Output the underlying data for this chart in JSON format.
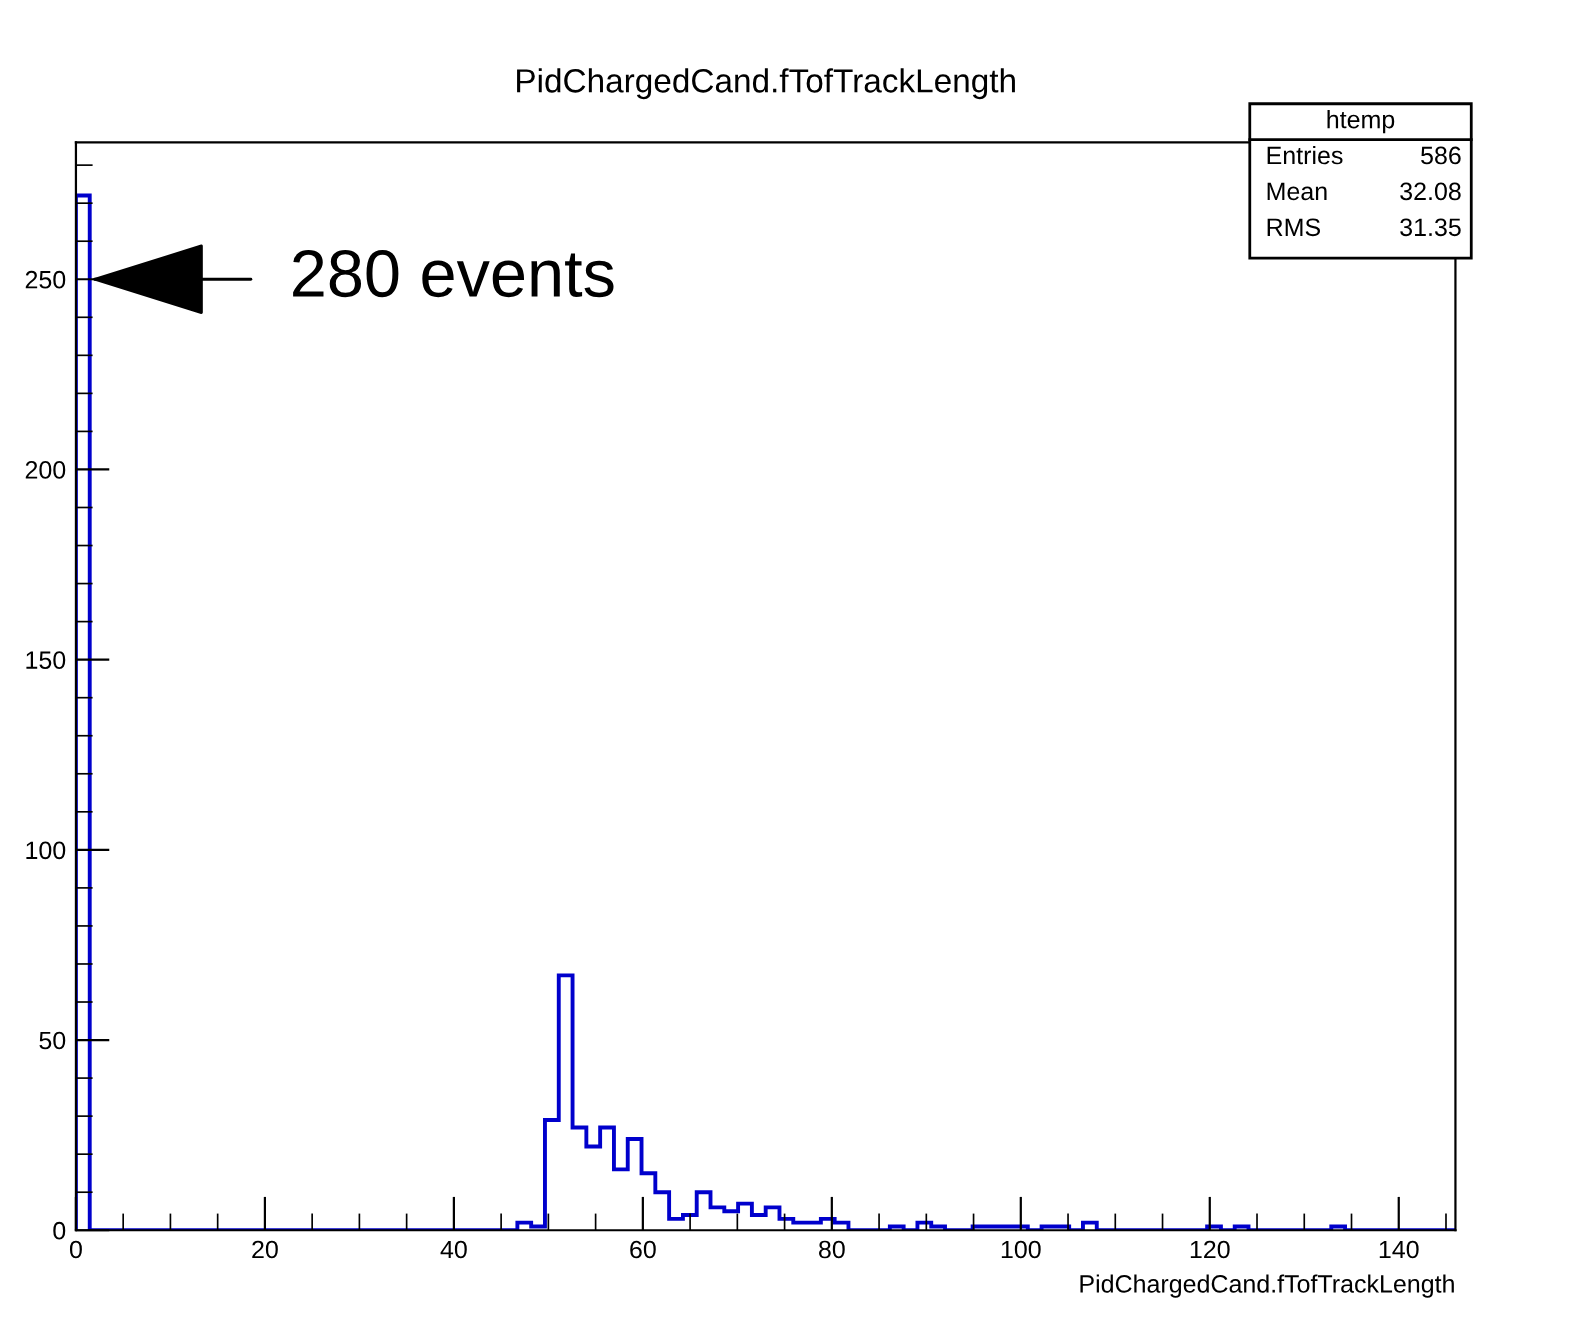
{
  "chart_data": {
    "type": "histogram",
    "title": "PidChargedCand.fTofTrackLength",
    "xlabel": "PidChargedCand.fTofTrackLength",
    "bins": [
      0,
      1.46,
      2.92,
      4.38,
      5.84,
      7.3,
      8.76,
      10.22,
      11.68,
      13.14,
      14.6,
      16.06,
      17.52,
      18.98,
      20.44,
      21.9,
      23.36,
      24.82,
      26.28,
      27.74,
      29.2,
      30.66,
      32.12,
      33.58,
      35.04,
      36.5,
      37.96,
      39.42,
      40.88,
      42.34,
      43.8,
      45.26,
      46.72,
      48.18,
      49.64,
      51.1,
      52.56,
      54.02,
      55.48,
      56.94,
      58.4,
      59.86,
      61.32,
      62.78,
      64.24,
      65.7,
      67.16,
      68.62,
      70.08,
      71.54,
      73,
      74.46,
      75.92,
      77.38,
      78.84,
      80.3,
      81.76,
      83.22,
      84.68,
      86.14,
      87.6,
      89.06,
      90.52,
      91.98,
      93.44,
      94.9,
      96.36,
      97.82,
      99.28,
      100.74,
      102.2,
      103.66,
      105.12,
      106.58,
      108.04,
      109.5,
      110.96,
      112.42,
      113.88,
      115.34,
      116.8,
      118.26,
      119.72,
      121.18,
      122.64,
      124.1,
      125.56,
      127.02,
      128.48,
      129.94,
      131.4,
      132.86,
      134.32,
      135.78,
      137.24,
      138.7,
      140.16,
      141.62,
      143.08,
      144.54,
      146
    ],
    "values": [
      272,
      0,
      0,
      0,
      0,
      0,
      0,
      0,
      0,
      0,
      0,
      0,
      0,
      0,
      0,
      0,
      0,
      0,
      0,
      0,
      0,
      0,
      0,
      0,
      0,
      0,
      0,
      0,
      0,
      0,
      0,
      0,
      2,
      1,
      29,
      67,
      27,
      22,
      27,
      16,
      24,
      15,
      10,
      3,
      4,
      10,
      6,
      5,
      7,
      4,
      6,
      3,
      2,
      2,
      3,
      2,
      0,
      0,
      0,
      1,
      0,
      2,
      1,
      0,
      0,
      1,
      1,
      1,
      1,
      0,
      1,
      1,
      0,
      2,
      0,
      0,
      0,
      0,
      0,
      0,
      0,
      0,
      1,
      0,
      1,
      0,
      0,
      0,
      0,
      0,
      0,
      1,
      0,
      0,
      0,
      0,
      0,
      0,
      0,
      0
    ],
    "color": "#0000cc",
    "xlim": [
      0,
      146
    ],
    "ylim": [
      0,
      286
    ],
    "xticks": [
      0,
      20,
      40,
      60,
      80,
      100,
      120,
      140
    ],
    "yticks": [
      0,
      50,
      100,
      150,
      200,
      250
    ],
    "grid": false,
    "legend": false,
    "annotations": [
      {
        "text": "280 events",
        "x": 1.5,
        "y": 250
      },
      "htemp",
      "Entries",
      "586",
      "Mean",
      "32.08",
      "RMS",
      "31.35"
    ]
  }
}
